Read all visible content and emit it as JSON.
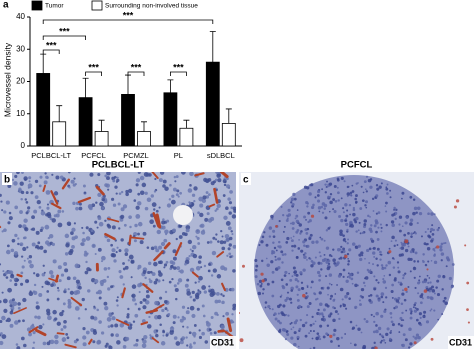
{
  "chart_data": {
    "type": "bar",
    "panel_label": "a",
    "y_label": "Microvessel density",
    "categories": [
      "PCLBCL-LT",
      "PCFCL",
      "PCMZL",
      "PL",
      "sDLBCL"
    ],
    "series": [
      {
        "name": "Tumor",
        "color": "#000000",
        "values": [
          22.5,
          15,
          16,
          16.5,
          26
        ],
        "errors": [
          6,
          6,
          6,
          4,
          9.5
        ]
      },
      {
        "name": "Surrounding non-involved tissue",
        "color": "#ffffff",
        "values": [
          7.5,
          4.5,
          4.5,
          5.5,
          7
        ],
        "errors": [
          5,
          3.5,
          3,
          2.5,
          4.5
        ]
      }
    ],
    "annotations": [
      "***",
      "***",
      "***",
      "***",
      "***",
      "***"
    ],
    "ylim": [
      0,
      40
    ],
    "yticks": [
      0,
      10,
      20,
      30,
      40
    ],
    "grid": false
  },
  "panels": [
    {
      "label": "b",
      "title": "PCLBCL-LT",
      "stain": "CD31"
    },
    {
      "label": "c",
      "title": "PCFCL",
      "stain": "CD31"
    }
  ]
}
